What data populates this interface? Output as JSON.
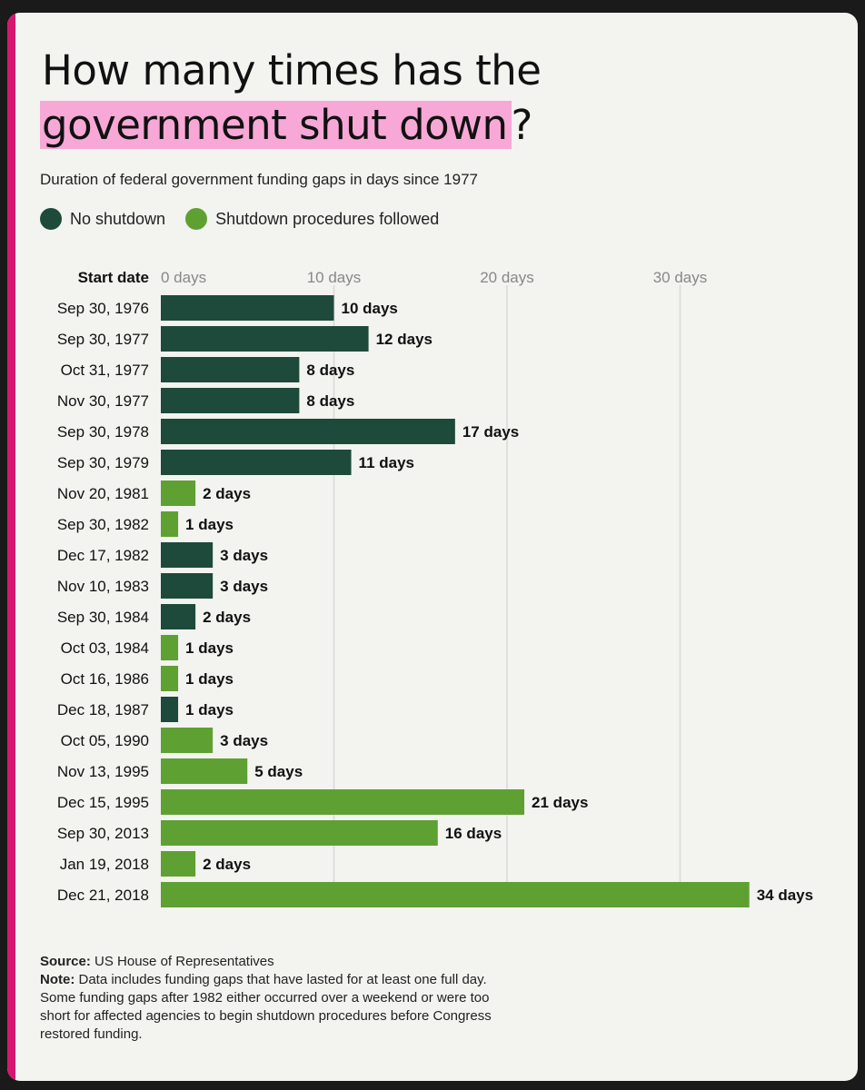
{
  "header": {
    "title_line1": "How many times has the",
    "title_highlight": "government shut down",
    "title_end": "?",
    "subtitle": "Duration of federal government funding gaps in days since 1977"
  },
  "legend": {
    "items": [
      {
        "label": "No shutdown",
        "color": "#1e4a3b"
      },
      {
        "label": "Shutdown procedures followed",
        "color": "#5fa033"
      }
    ]
  },
  "footer": {
    "source_label": "Source:",
    "source_text": "US House of Representatives",
    "note_label": "Note:",
    "note_text": "Data includes funding gaps that have lasted for at least one full day. Some funding gaps after 1982 either occurred over a weekend or were too short for affected agencies to begin shutdown procedures before Congress restored funding."
  },
  "chart_data": {
    "type": "bar",
    "orientation": "horizontal",
    "category_header": "Start date",
    "value_suffix": " days",
    "xlim": [
      0,
      34
    ],
    "ticks": [
      0,
      10,
      20,
      30
    ],
    "tick_labels": [
      "0 days",
      "10 days",
      "20 days",
      "30 days"
    ],
    "grid": true,
    "colors": {
      "no_shutdown": "#1e4a3b",
      "shutdown": "#5fa033"
    },
    "categories": [
      "Sep 30, 1976",
      "Sep 30, 1977",
      "Oct 31, 1977",
      "Nov 30, 1977",
      "Sep 30, 1978",
      "Sep 30, 1979",
      "Nov 20, 1981",
      "Sep 30, 1982",
      "Dec 17, 1982",
      "Nov 10, 1983",
      "Sep 30, 1984",
      "Oct 03, 1984",
      "Oct 16, 1986",
      "Dec 18, 1987",
      "Oct 05, 1990",
      "Nov 13, 1995",
      "Dec 15, 1995",
      "Sep 30, 2013",
      "Jan 19, 2018",
      "Dec 21, 2018"
    ],
    "values": [
      10,
      12,
      8,
      8,
      17,
      11,
      2,
      1,
      3,
      3,
      2,
      1,
      1,
      1,
      3,
      5,
      21,
      16,
      2,
      34
    ],
    "series_type": [
      "no_shutdown",
      "no_shutdown",
      "no_shutdown",
      "no_shutdown",
      "no_shutdown",
      "no_shutdown",
      "shutdown",
      "shutdown",
      "no_shutdown",
      "no_shutdown",
      "no_shutdown",
      "shutdown",
      "shutdown",
      "no_shutdown",
      "shutdown",
      "shutdown",
      "shutdown",
      "shutdown",
      "shutdown",
      "shutdown"
    ]
  }
}
